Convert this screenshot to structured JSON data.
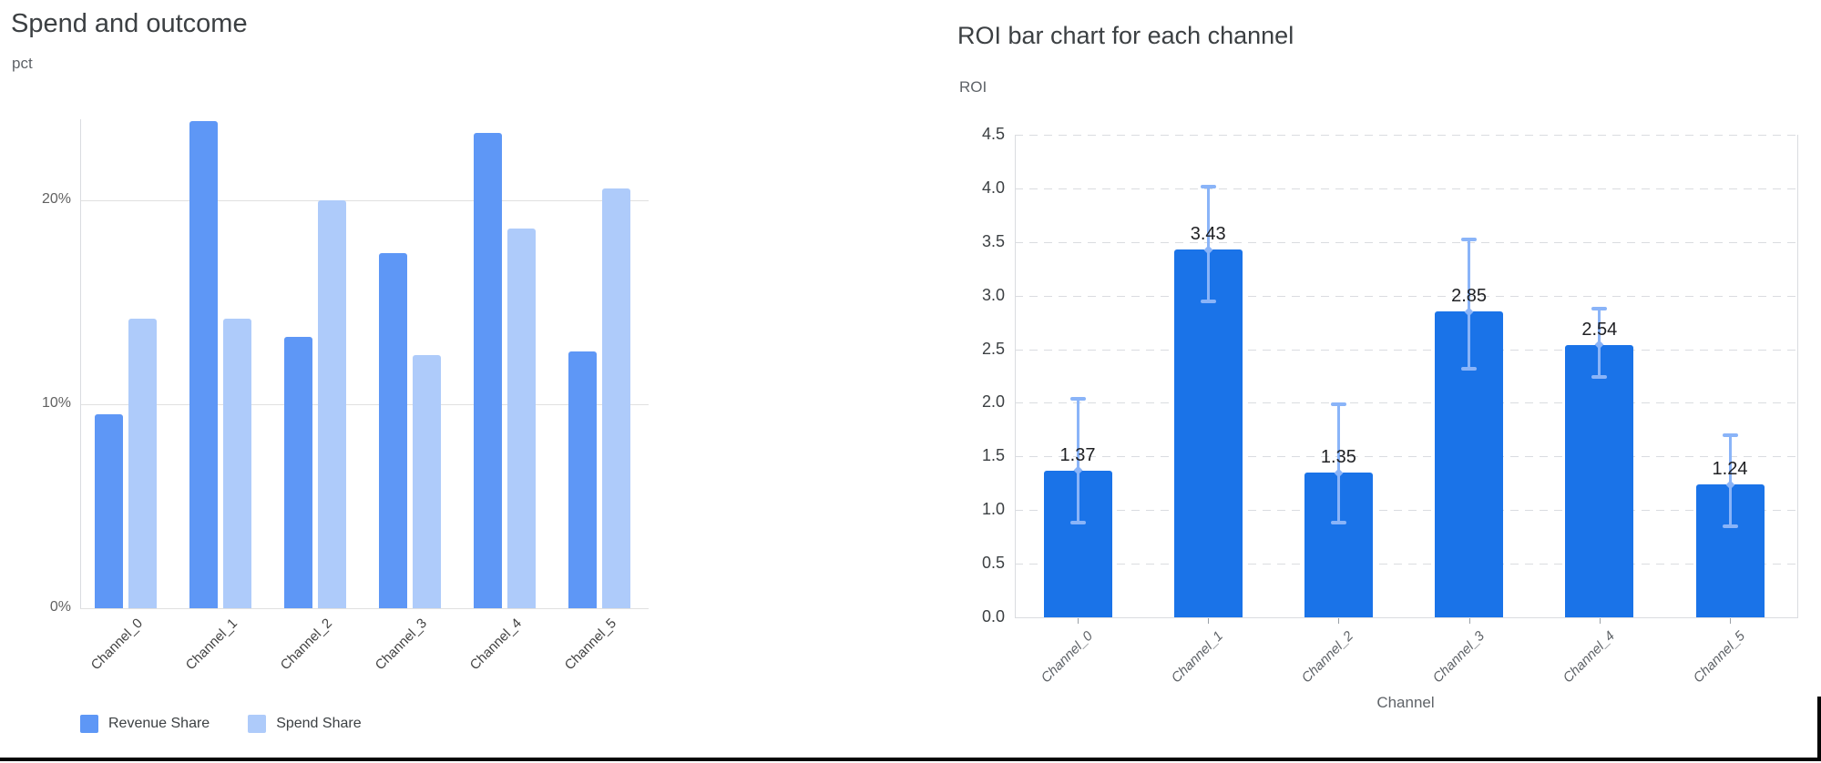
{
  "page": {
    "bottom_rule_color": "#050505"
  },
  "chart_data": [
    {
      "type": "bar",
      "title": "Spend and outcome",
      "ylabel": "pct",
      "xlabel": "",
      "categories": [
        "Channel_0",
        "Channel_1",
        "Channel_2",
        "Channel_3",
        "Channel_4",
        "Channel_5"
      ],
      "series": [
        {
          "name": "Revenue Share",
          "color": "#5e97f6",
          "values": [
            9.5,
            23.9,
            13.3,
            17.4,
            23.3,
            12.6
          ]
        },
        {
          "name": "Spend Share",
          "color": "#aecbfa",
          "values": [
            14.2,
            14.2,
            20.0,
            12.4,
            18.6,
            20.6
          ]
        }
      ],
      "y_ticks": [
        {
          "label": "0%",
          "value": 0
        },
        {
          "label": "10%",
          "value": 10
        },
        {
          "label": "20%",
          "value": 20
        }
      ],
      "ylim": [
        0,
        24
      ],
      "grid": "horizontal-solid",
      "legend_position": "bottom-left"
    },
    {
      "type": "bar",
      "title": "ROI bar chart for each channel",
      "ylabel": "ROI",
      "xlabel": "Channel",
      "categories": [
        "Channel_0",
        "Channel_1",
        "Channel_2",
        "Channel_3",
        "Channel_4",
        "Channel_5"
      ],
      "values": [
        1.37,
        3.43,
        1.35,
        2.85,
        2.54,
        1.24
      ],
      "bar_labels": [
        "1.37",
        "3.43",
        "1.35",
        "2.85",
        "2.54",
        "1.24"
      ],
      "bar_color": "#1a73e8",
      "error_bars": {
        "color": "#8ab4f8",
        "low": [
          0.88,
          2.95,
          0.88,
          2.32,
          2.24,
          0.85
        ],
        "high": [
          2.04,
          4.02,
          1.99,
          3.52,
          2.88,
          1.7
        ]
      },
      "y_ticks": [
        {
          "label": "0.0",
          "value": 0.0
        },
        {
          "label": "0.5",
          "value": 0.5
        },
        {
          "label": "1.0",
          "value": 1.0
        },
        {
          "label": "1.5",
          "value": 1.5
        },
        {
          "label": "2.0",
          "value": 2.0
        },
        {
          "label": "2.5",
          "value": 2.5
        },
        {
          "label": "3.0",
          "value": 3.0
        },
        {
          "label": "3.5",
          "value": 3.5
        },
        {
          "label": "4.0",
          "value": 4.0
        },
        {
          "label": "4.5",
          "value": 4.5
        }
      ],
      "ylim": [
        0,
        4.5
      ],
      "grid": "horizontal-dashed",
      "legend_position": "none"
    }
  ]
}
